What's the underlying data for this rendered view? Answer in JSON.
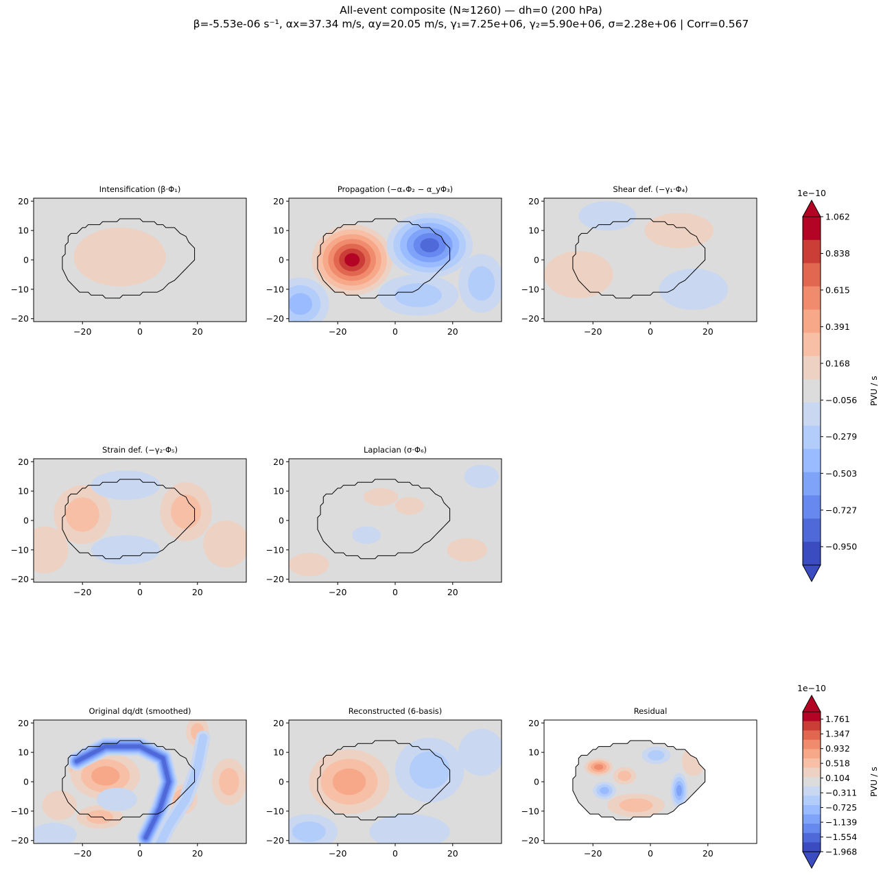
{
  "figure": {
    "title_line1": "All-event composite (N≈1260) — dh=0 (200 hPa)",
    "title_line2": "β=-5.53e-06 s⁻¹,  αx=37.34 m/s,  αy=20.05 m/s,  γ₁=7.25e+06,  γ₂=5.90e+06,  σ=2.28e+06  |  Corr=0.567"
  },
  "colors": {
    "background": "#dcdcdc",
    "ramp": [
      "#3b4cc0",
      "#4f69d9",
      "#6788ee",
      "#80a3fa",
      "#9abbff",
      "#b3cdfb",
      "#c9d7f0",
      "#dcdcdc",
      "#edd1c2",
      "#f6bfa6",
      "#f7a889",
      "#f08b6e",
      "#e16751",
      "#cb3e38",
      "#b40426"
    ],
    "outline": "#000000"
  },
  "chart_data": [
    {
      "type": "heatmap",
      "panel": "intensification",
      "title": "Intensification (β·Φ₁)",
      "xlim": [
        -37,
        37
      ],
      "ylim": [
        -21,
        21
      ],
      "xticks": [
        "−20",
        "0",
        "20"
      ],
      "yticks": [
        "20",
        "10",
        "0",
        "−10",
        "−20"
      ],
      "features": [
        {
          "kind": "blob",
          "x": -7,
          "y": 1,
          "rx": 16,
          "ry": 10,
          "level": 0.1
        }
      ],
      "outline": true,
      "masked": false
    },
    {
      "type": "heatmap",
      "panel": "propagation",
      "title": "Propagation (−αₓΦ₂ − α_yΦ₃)",
      "xlim": [
        -37,
        37
      ],
      "ylim": [
        -21,
        21
      ],
      "xticks": [
        "−20",
        "0",
        "20"
      ],
      "yticks": [
        "20",
        "10",
        "0",
        "−10",
        "−20"
      ],
      "features": [
        {
          "kind": "blob",
          "x": -15,
          "y": 0,
          "rx": 14,
          "ry": 12,
          "level": 1.06
        },
        {
          "kind": "blob",
          "x": 12,
          "y": 5,
          "rx": 15,
          "ry": 11,
          "level": -0.95
        },
        {
          "kind": "blob",
          "x": -33,
          "y": -15,
          "rx": 10,
          "ry": 9,
          "level": -0.45
        },
        {
          "kind": "blob",
          "x": 8,
          "y": -12,
          "rx": 14,
          "ry": 7,
          "level": -0.35
        },
        {
          "kind": "blob",
          "x": 30,
          "y": -8,
          "rx": 8,
          "ry": 10,
          "level": -0.3
        }
      ],
      "outline": true,
      "masked": false
    },
    {
      "type": "heatmap",
      "panel": "shear",
      "title": "Shear def. (−γ₁·Φ₄)",
      "xlim": [
        -37,
        37
      ],
      "ylim": [
        -21,
        21
      ],
      "xticks": [
        "−20",
        "0",
        "20"
      ],
      "yticks": [
        "20",
        "10",
        "0",
        "−10",
        "−20"
      ],
      "features": [
        {
          "kind": "blob",
          "x": -25,
          "y": -5,
          "rx": 12,
          "ry": 8,
          "level": 0.12
        },
        {
          "kind": "blob",
          "x": 10,
          "y": 10,
          "rx": 12,
          "ry": 6,
          "level": 0.12
        },
        {
          "kind": "blob",
          "x": -15,
          "y": 15,
          "rx": 10,
          "ry": 5,
          "level": -0.12
        },
        {
          "kind": "blob",
          "x": 15,
          "y": -10,
          "rx": 12,
          "ry": 7,
          "level": -0.12
        }
      ],
      "outline": true,
      "masked": false
    },
    {
      "type": "heatmap",
      "panel": "strain",
      "title": "Strain def. (−γ₂·Φ₅)",
      "xlim": [
        -37,
        37
      ],
      "ylim": [
        -21,
        21
      ],
      "xticks": [
        "−20",
        "0",
        "20"
      ],
      "yticks": [
        "20",
        "10",
        "0",
        "−10",
        "−20"
      ],
      "features": [
        {
          "kind": "blob",
          "x": -20,
          "y": 2,
          "rx": 10,
          "ry": 10,
          "level": 0.3
        },
        {
          "kind": "blob",
          "x": 16,
          "y": 3,
          "rx": 9,
          "ry": 10,
          "level": 0.3
        },
        {
          "kind": "blob",
          "x": -5,
          "y": 12,
          "rx": 12,
          "ry": 5,
          "level": -0.2
        },
        {
          "kind": "blob",
          "x": -5,
          "y": -10,
          "rx": 12,
          "ry": 5,
          "level": -0.15
        },
        {
          "kind": "blob",
          "x": -33,
          "y": -10,
          "rx": 8,
          "ry": 8,
          "level": 0.12
        },
        {
          "kind": "blob",
          "x": 30,
          "y": -8,
          "rx": 8,
          "ry": 8,
          "level": 0.12
        }
      ],
      "outline": true,
      "masked": false
    },
    {
      "type": "heatmap",
      "panel": "laplacian",
      "title": "Laplacian (σ·Φ₆)",
      "xlim": [
        -37,
        37
      ],
      "ylim": [
        -21,
        21
      ],
      "xticks": [
        "−20",
        "0",
        "20"
      ],
      "yticks": [
        "20",
        "10",
        "0",
        "−10",
        "−20"
      ],
      "features": [
        {
          "kind": "blob",
          "x": -5,
          "y": 8,
          "rx": 6,
          "ry": 3,
          "level": 0.12
        },
        {
          "kind": "blob",
          "x": 5,
          "y": 5,
          "rx": 5,
          "ry": 3,
          "level": 0.1
        },
        {
          "kind": "blob",
          "x": 25,
          "y": -10,
          "rx": 7,
          "ry": 4,
          "level": 0.1
        },
        {
          "kind": "blob",
          "x": -30,
          "y": -15,
          "rx": 7,
          "ry": 4,
          "level": 0.1
        },
        {
          "kind": "blob",
          "x": 30,
          "y": 15,
          "rx": 6,
          "ry": 4,
          "level": -0.12
        },
        {
          "kind": "blob",
          "x": -10,
          "y": -5,
          "rx": 5,
          "ry": 3,
          "level": -0.1
        }
      ],
      "outline": true,
      "masked": false
    },
    {
      "type": "heatmap",
      "panel": "original",
      "title": "Original dq/dt (smoothed)",
      "xlim": [
        -37,
        37
      ],
      "ylim": [
        -21,
        21
      ],
      "xticks": [
        "−20",
        "0",
        "20"
      ],
      "yticks": [
        "20",
        "10",
        "0",
        "−10",
        "−20"
      ],
      "features": [
        {
          "kind": "blob",
          "x": -19,
          "y": 4,
          "rx": 6,
          "ry": 3,
          "level": 1.76
        },
        {
          "kind": "blob",
          "x": -12,
          "y": 2,
          "rx": 12,
          "ry": 8,
          "level": 0.8
        },
        {
          "kind": "blob",
          "x": -14,
          "y": -12,
          "rx": 8,
          "ry": 4,
          "level": 0.5
        },
        {
          "kind": "blob",
          "x": -28,
          "y": -8,
          "rx": 6,
          "ry": 5,
          "level": 0.4
        },
        {
          "kind": "blob",
          "x": 15,
          "y": -6,
          "rx": 5,
          "ry": 5,
          "level": 0.8
        },
        {
          "kind": "blob",
          "x": 31,
          "y": 0,
          "rx": 6,
          "ry": 8,
          "level": 0.7
        },
        {
          "kind": "blob",
          "x": 20,
          "y": 17,
          "rx": 4,
          "ry": 5,
          "level": 0.6
        },
        {
          "kind": "band",
          "points": [
            [
              -22,
              7
            ],
            [
              -12,
              12
            ],
            [
              0,
              12
            ],
            [
              8,
              8
            ],
            [
              10,
              0
            ],
            [
              7,
              -9
            ],
            [
              2,
              -19
            ]
          ],
          "width": 3.2,
          "level": -1.6
        },
        {
          "kind": "band",
          "points": [
            [
              22,
              15
            ],
            [
              20,
              5
            ],
            [
              16,
              -6
            ],
            [
              10,
              -15
            ],
            [
              7,
              -21
            ]
          ],
          "width": 2.5,
          "level": -0.6
        },
        {
          "kind": "blob",
          "x": -8,
          "y": -6,
          "rx": 7,
          "ry": 4,
          "level": -0.4
        },
        {
          "kind": "blob",
          "x": -30,
          "y": -18,
          "rx": 8,
          "ry": 4,
          "level": -0.4
        }
      ],
      "outline": true,
      "masked": false
    },
    {
      "type": "heatmap",
      "panel": "reconstructed",
      "title": "Reconstructed (6-basis)",
      "xlim": [
        -37,
        37
      ],
      "ylim": [
        -21,
        21
      ],
      "xticks": [
        "−20",
        "0",
        "20"
      ],
      "yticks": [
        "20",
        "10",
        "0",
        "−10",
        "−20"
      ],
      "features": [
        {
          "kind": "blob",
          "x": -16,
          "y": 0,
          "rx": 14,
          "ry": 11,
          "level": 0.95
        },
        {
          "kind": "blob",
          "x": 12,
          "y": 4,
          "rx": 12,
          "ry": 11,
          "level": -0.7
        },
        {
          "kind": "blob",
          "x": -30,
          "y": -17,
          "rx": 10,
          "ry": 6,
          "level": -0.45
        },
        {
          "kind": "blob",
          "x": 5,
          "y": -17,
          "rx": 14,
          "ry": 6,
          "level": -0.4
        },
        {
          "kind": "blob",
          "x": 30,
          "y": 10,
          "rx": 8,
          "ry": 8,
          "level": -0.25
        }
      ],
      "outline": true,
      "masked": false
    },
    {
      "type": "heatmap",
      "panel": "residual",
      "title": "Residual",
      "xlim": [
        -37,
        37
      ],
      "ylim": [
        -21,
        21
      ],
      "xticks": [
        "−20",
        "0",
        "20"
      ],
      "yticks": [
        "20",
        "10",
        "0",
        "−10",
        "−20"
      ],
      "features": [
        {
          "kind": "blob",
          "x": -18,
          "y": 5,
          "rx": 5,
          "ry": 3,
          "level": 1.0
        },
        {
          "kind": "blob",
          "x": -9,
          "y": 2,
          "rx": 4,
          "ry": 3,
          "level": 0.6
        },
        {
          "kind": "blob",
          "x": -5,
          "y": -8,
          "rx": 10,
          "ry": 4,
          "level": 0.5
        },
        {
          "kind": "blob",
          "x": -16,
          "y": -3,
          "rx": 4,
          "ry": 3,
          "level": -0.8
        },
        {
          "kind": "blob",
          "x": 10,
          "y": -3,
          "rx": 3,
          "ry": 6,
          "level": -1.1
        },
        {
          "kind": "blob",
          "x": 2,
          "y": 9,
          "rx": 5,
          "ry": 3,
          "level": -0.5
        },
        {
          "kind": "blob",
          "x": 15,
          "y": 7,
          "rx": 4,
          "ry": 5,
          "level": 0.4
        }
      ],
      "outline": true,
      "masked": true
    }
  ],
  "colorbar_top": {
    "exponent": "1e−10",
    "label": "PVU / s",
    "ticks": [
      "1.062",
      "0.838",
      "0.615",
      "0.391",
      "0.168",
      "−0.056",
      "−0.279",
      "−0.503",
      "−0.727",
      "−0.950"
    ],
    "tick_values": [
      1.062,
      0.838,
      0.615,
      0.391,
      0.168,
      -0.056,
      -0.279,
      -0.503,
      -0.727,
      -0.95
    ],
    "vmin": -1.062,
    "vmax": 1.062
  },
  "colorbar_bottom": {
    "exponent": "1e−10",
    "label": "PVU / s",
    "ticks": [
      "1.761",
      "1.347",
      "0.932",
      "0.518",
      "0.104",
      "−0.311",
      "−0.725",
      "−1.139",
      "−1.554",
      "−1.968"
    ],
    "tick_values": [
      1.761,
      1.347,
      0.932,
      0.518,
      0.104,
      -0.311,
      -0.725,
      -1.139,
      -1.554,
      -1.968
    ],
    "vmin": -1.968,
    "vmax": 1.968
  },
  "outline_polygon": [
    [
      -27,
      -2
    ],
    [
      -27,
      1
    ],
    [
      -26,
      2
    ],
    [
      -26,
      5
    ],
    [
      -25,
      6
    ],
    [
      -25,
      8
    ],
    [
      -24,
      9
    ],
    [
      -22,
      9
    ],
    [
      -21,
      10
    ],
    [
      -20,
      11
    ],
    [
      -19,
      11
    ],
    [
      -18,
      12
    ],
    [
      -14,
      12
    ],
    [
      -13,
      13
    ],
    [
      -8,
      13
    ],
    [
      -7,
      14
    ],
    [
      0,
      14
    ],
    [
      1,
      13
    ],
    [
      5,
      13
    ],
    [
      6,
      12
    ],
    [
      8,
      12
    ],
    [
      9,
      11
    ],
    [
      12,
      11
    ],
    [
      13,
      10
    ],
    [
      14,
      9
    ],
    [
      16,
      8
    ],
    [
      17,
      6
    ],
    [
      18,
      5
    ],
    [
      19,
      4
    ],
    [
      19,
      0
    ],
    [
      18,
      -1
    ],
    [
      17,
      -2
    ],
    [
      16,
      -3
    ],
    [
      15,
      -4
    ],
    [
      14,
      -5
    ],
    [
      13,
      -6
    ],
    [
      12,
      -7
    ],
    [
      10,
      -8
    ],
    [
      9,
      -9
    ],
    [
      8,
      -10
    ],
    [
      6,
      -11
    ],
    [
      1,
      -11
    ],
    [
      0,
      -12
    ],
    [
      -6,
      -12
    ],
    [
      -7,
      -13
    ],
    [
      -12,
      -13
    ],
    [
      -13,
      -12
    ],
    [
      -17,
      -12
    ],
    [
      -18,
      -11
    ],
    [
      -21,
      -11
    ],
    [
      -22,
      -10
    ],
    [
      -23,
      -9
    ],
    [
      -24,
      -8
    ],
    [
      -25,
      -7
    ],
    [
      -26,
      -5
    ],
    [
      -27,
      -3
    ]
  ]
}
